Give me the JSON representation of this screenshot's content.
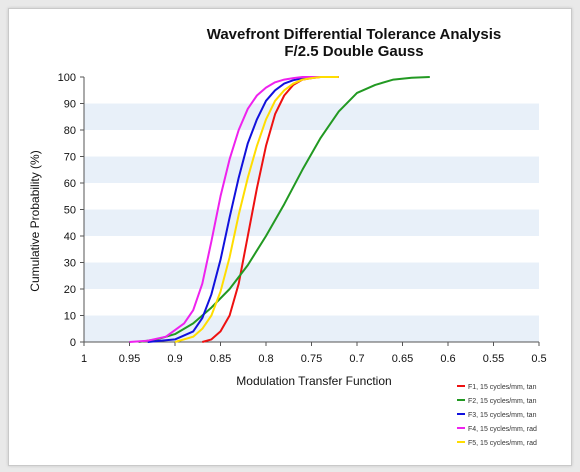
{
  "chart_data": {
    "type": "line",
    "title": "Wavefront Differential Tolerance Analysis",
    "subtitle": "F/2.5 Double Gauss",
    "xlabel": "Modulation Transfer Function",
    "ylabel": "Cumulative Probability (%)",
    "x_reversed": true,
    "xlim": [
      1,
      0.5
    ],
    "ylim": [
      0,
      100
    ],
    "x_ticks": [
      1,
      0.95,
      0.9,
      0.85,
      0.8,
      0.75,
      0.7,
      0.65,
      0.6,
      0.55,
      0.5
    ],
    "x_tick_labels": [
      "1",
      "0.95",
      "0.9",
      "0.85",
      "0.8",
      "0.75",
      "0.7",
      "0.65",
      "0.6",
      "0.55",
      "0.5"
    ],
    "y_ticks": [
      0,
      10,
      20,
      30,
      40,
      50,
      60,
      70,
      80,
      90,
      100
    ],
    "grid": "alternating horizontal bands",
    "band_color": "#e8f0f9",
    "legend_position": "bottom-right",
    "series": [
      {
        "name": "F1, 15 cycles/mm, tan",
        "color": "#ee1111",
        "points": [
          [
            0.87,
            0
          ],
          [
            0.86,
            1
          ],
          [
            0.85,
            4
          ],
          [
            0.84,
            10
          ],
          [
            0.83,
            22
          ],
          [
            0.82,
            40
          ],
          [
            0.81,
            58
          ],
          [
            0.8,
            74
          ],
          [
            0.79,
            86
          ],
          [
            0.78,
            93
          ],
          [
            0.77,
            97
          ],
          [
            0.76,
            99
          ],
          [
            0.75,
            99.6
          ],
          [
            0.74,
            100
          ],
          [
            0.72,
            100
          ]
        ]
      },
      {
        "name": "F2, 15 cycles/mm, tan",
        "color": "#229922",
        "points": [
          [
            0.94,
            0
          ],
          [
            0.92,
            1
          ],
          [
            0.9,
            3
          ],
          [
            0.88,
            7
          ],
          [
            0.86,
            13
          ],
          [
            0.84,
            20
          ],
          [
            0.82,
            29
          ],
          [
            0.8,
            40
          ],
          [
            0.78,
            52
          ],
          [
            0.76,
            65
          ],
          [
            0.74,
            77
          ],
          [
            0.72,
            87
          ],
          [
            0.7,
            94
          ],
          [
            0.68,
            97
          ],
          [
            0.66,
            99
          ],
          [
            0.64,
            99.7
          ],
          [
            0.62,
            100
          ]
        ]
      },
      {
        "name": "F3, 15 cycles/mm, tan",
        "color": "#1111dd",
        "points": [
          [
            0.93,
            0
          ],
          [
            0.9,
            1
          ],
          [
            0.88,
            4
          ],
          [
            0.87,
            9
          ],
          [
            0.86,
            18
          ],
          [
            0.85,
            31
          ],
          [
            0.84,
            47
          ],
          [
            0.83,
            62
          ],
          [
            0.82,
            75
          ],
          [
            0.81,
            84
          ],
          [
            0.8,
            91
          ],
          [
            0.79,
            95
          ],
          [
            0.78,
            97.5
          ],
          [
            0.77,
            98.8
          ],
          [
            0.76,
            99.5
          ],
          [
            0.75,
            100
          ],
          [
            0.72,
            100
          ]
        ]
      },
      {
        "name": "F4, 15 cycles/mm, rad",
        "color": "#ee22ee",
        "points": [
          [
            0.95,
            0
          ],
          [
            0.93,
            0.5
          ],
          [
            0.91,
            2
          ],
          [
            0.89,
            7
          ],
          [
            0.88,
            12
          ],
          [
            0.87,
            22
          ],
          [
            0.86,
            38
          ],
          [
            0.85,
            55
          ],
          [
            0.84,
            69
          ],
          [
            0.83,
            80
          ],
          [
            0.82,
            88
          ],
          [
            0.81,
            93
          ],
          [
            0.8,
            96
          ],
          [
            0.79,
            98
          ],
          [
            0.78,
            99
          ],
          [
            0.77,
            99.6
          ],
          [
            0.76,
            100
          ],
          [
            0.72,
            100
          ]
        ]
      },
      {
        "name": "F5, 15 cycles/mm, rad",
        "color": "#ffdd00",
        "points": [
          [
            0.9,
            0
          ],
          [
            0.88,
            2
          ],
          [
            0.87,
            5
          ],
          [
            0.86,
            10
          ],
          [
            0.85,
            19
          ],
          [
            0.84,
            32
          ],
          [
            0.83,
            48
          ],
          [
            0.82,
            62
          ],
          [
            0.81,
            74
          ],
          [
            0.8,
            84
          ],
          [
            0.79,
            91
          ],
          [
            0.78,
            95
          ],
          [
            0.77,
            97.5
          ],
          [
            0.76,
            99
          ],
          [
            0.75,
            99.6
          ],
          [
            0.74,
            100
          ],
          [
            0.72,
            100
          ]
        ]
      }
    ]
  }
}
